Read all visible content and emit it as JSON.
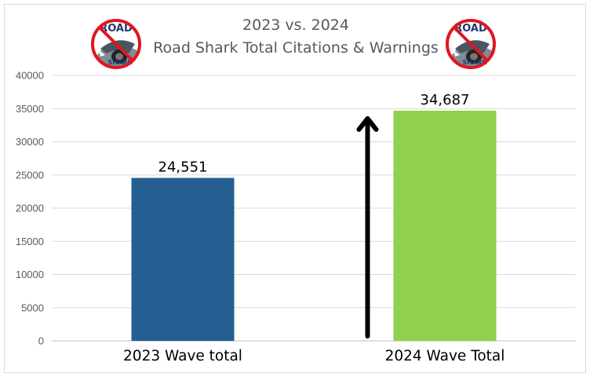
{
  "chart_data": {
    "type": "bar",
    "title_lines": [
      "2023 vs. 2024",
      "Road Shark Total Citations & Warnings"
    ],
    "categories": [
      "2023 Wave total",
      "2024 Wave Total"
    ],
    "values": [
      24551,
      34687
    ],
    "data_labels": [
      "24,551",
      "34,687"
    ],
    "bar_colors": [
      "#255e91",
      "#92d050"
    ],
    "ylim": [
      0,
      40000
    ],
    "yticks": [
      "0",
      "5000",
      "10000",
      "15000",
      "20000",
      "25000",
      "30000",
      "35000",
      "40000"
    ],
    "grid": true,
    "xlabel": "",
    "ylabel": ""
  },
  "annotations": {
    "arrow": {
      "direction": "up",
      "color": "#000000",
      "from_value": 0,
      "to_value": 34687
    }
  },
  "logos": {
    "left": {
      "text_top": "ROAD",
      "text_bottom": "SHARK",
      "icon": "no-road-shark-logo"
    },
    "right": {
      "text_top": "ROAD",
      "text_bottom": "SHARK",
      "icon": "no-road-shark-logo"
    }
  },
  "colors": {
    "grid": "#d9d9d9",
    "axis": "#bfbfbf",
    "logo_red": "#e0161e"
  }
}
